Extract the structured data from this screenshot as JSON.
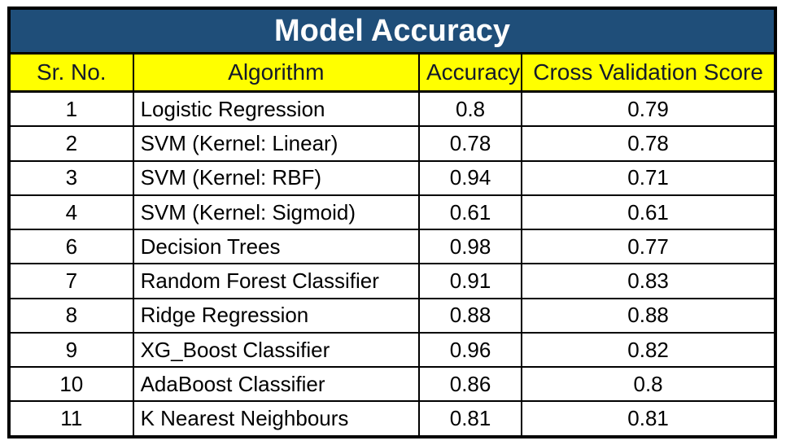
{
  "title": "Model Accuracy",
  "colors": {
    "title_bg": "#1F4E79",
    "title_text": "#FFFFFF",
    "header_bg": "#FFFF00",
    "header_text": "#141A2A",
    "border": "#000000",
    "cell_bg": "#FFFFFF",
    "cell_text": "#000000"
  },
  "chart_data": {
    "type": "table",
    "title": "Model Accuracy",
    "columns": [
      "Sr. No.",
      "Algorithm",
      "Accuracy",
      "Cross Validation Score"
    ],
    "rows": [
      [
        "1",
        "Logistic Regression",
        "0.8",
        "0.79"
      ],
      [
        "2",
        "SVM (Kernel: Linear)",
        "0.78",
        "0.78"
      ],
      [
        "3",
        "SVM (Kernel: RBF)",
        "0.94",
        "0.71"
      ],
      [
        "4",
        "SVM (Kernel: Sigmoid)",
        "0.61",
        "0.61"
      ],
      [
        "6",
        "Decision Trees",
        "0.98",
        "0.77"
      ],
      [
        "7",
        "Random Forest Classifier",
        "0.91",
        "0.83"
      ],
      [
        "8",
        "Ridge Regression",
        "0.88",
        "0.88"
      ],
      [
        "9",
        "XG_Boost Classifier",
        "0.96",
        "0.82"
      ],
      [
        "10",
        "AdaBoost Classifier",
        "0.86",
        "0.8"
      ],
      [
        "11",
        "K Nearest Neighbours",
        "0.81",
        "0.81"
      ]
    ]
  },
  "table": {
    "columns": [
      "Sr. No.",
      "Algorithm",
      "Accuracy",
      "Cross Validation Score"
    ],
    "rows": [
      {
        "sr": "1",
        "algorithm": "Logistic Regression",
        "accuracy": "0.8",
        "cvs": "0.79"
      },
      {
        "sr": "2",
        "algorithm": "SVM (Kernel: Linear)",
        "accuracy": "0.78",
        "cvs": "0.78"
      },
      {
        "sr": "3",
        "algorithm": "SVM (Kernel: RBF)",
        "accuracy": "0.94",
        "cvs": "0.71"
      },
      {
        "sr": "4",
        "algorithm": "SVM (Kernel: Sigmoid)",
        "accuracy": "0.61",
        "cvs": "0.61"
      },
      {
        "sr": "6",
        "algorithm": "Decision Trees",
        "accuracy": "0.98",
        "cvs": "0.77"
      },
      {
        "sr": "7",
        "algorithm": "Random Forest Classifier",
        "accuracy": "0.91",
        "cvs": "0.83"
      },
      {
        "sr": "8",
        "algorithm": "Ridge Regression",
        "accuracy": "0.88",
        "cvs": "0.88"
      },
      {
        "sr": "9",
        "algorithm": "XG_Boost Classifier",
        "accuracy": "0.96",
        "cvs": "0.82"
      },
      {
        "sr": "10",
        "algorithm": "AdaBoost Classifier",
        "accuracy": "0.86",
        "cvs": "0.8"
      },
      {
        "sr": "11",
        "algorithm": "K Nearest Neighbours",
        "accuracy": "0.81",
        "cvs": "0.81"
      }
    ]
  }
}
